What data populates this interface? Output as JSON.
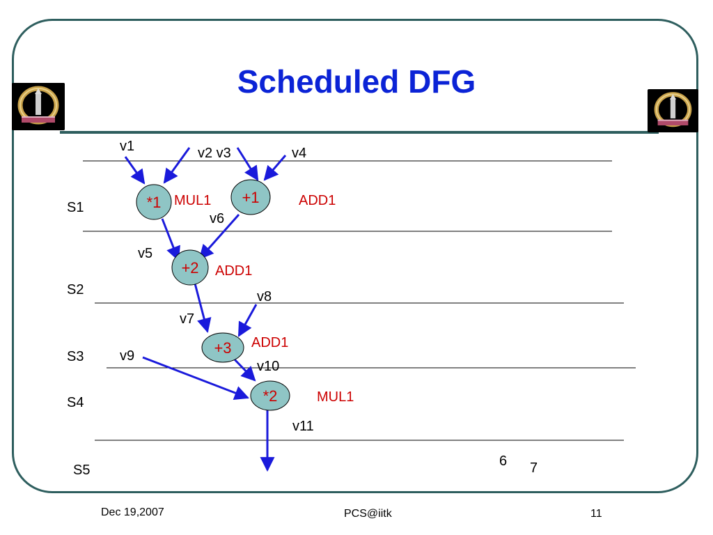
{
  "slide": {
    "title": "Scheduled DFG",
    "footer": {
      "date": "Dec 19,2007",
      "center": "PCS@iitk",
      "page": "11"
    }
  },
  "diagram": {
    "steps": [
      "S1",
      "S2",
      "S3",
      "S4",
      "S5"
    ],
    "nodes": [
      {
        "op": "*1",
        "resource": "MUL1"
      },
      {
        "op": "+1",
        "resource": "ADD1"
      },
      {
        "op": "+2",
        "resource": "ADD1"
      },
      {
        "op": "+3",
        "resource": "ADD1"
      },
      {
        "op": "*2",
        "resource": "MUL1"
      }
    ],
    "edge_labels": [
      "v1",
      "v2 v3",
      "v4",
      "v5",
      "v6",
      "v7",
      "v8",
      "v9",
      "v10",
      "v11"
    ],
    "notes": [
      "6",
      "7"
    ]
  },
  "colors": {
    "title": "#0b23d6",
    "frame": "#2e5e5e",
    "edge": "#1a1adb",
    "node_fill": "#8fc5c5",
    "resource_label": "#cc0000"
  },
  "icons": {
    "logo": "institute-emblem-icon"
  }
}
